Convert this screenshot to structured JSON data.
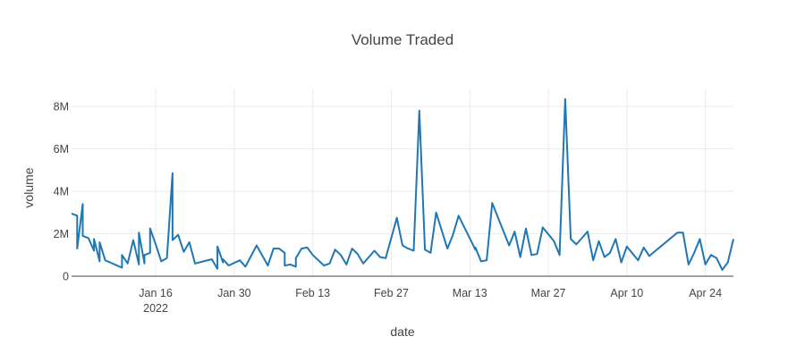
{
  "chart_data": {
    "type": "line",
    "title": "Volume Traded",
    "xlabel": "date",
    "ylabel": "volume",
    "x_range": [
      "2022-01-01",
      "2022-04-29"
    ],
    "ylim": [
      0,
      8800000
    ],
    "x_ticks": [
      {
        "date": "2022-01-16",
        "label": "Jan 16",
        "sublabel": "2022"
      },
      {
        "date": "2022-01-30",
        "label": "Jan 30"
      },
      {
        "date": "2022-02-13",
        "label": "Feb 13"
      },
      {
        "date": "2022-02-27",
        "label": "Feb 27"
      },
      {
        "date": "2022-03-13",
        "label": "Mar 13"
      },
      {
        "date": "2022-03-27",
        "label": "Mar 27"
      },
      {
        "date": "2022-04-10",
        "label": "Apr 10"
      },
      {
        "date": "2022-04-24",
        "label": "Apr 24"
      }
    ],
    "y_ticks": [
      {
        "value": 0,
        "label": "0"
      },
      {
        "value": 2000000,
        "label": "2M"
      },
      {
        "value": 4000000,
        "label": "4M"
      },
      {
        "value": 6000000,
        "label": "6M"
      },
      {
        "value": 8000000,
        "label": "8M"
      }
    ],
    "grid": true,
    "line_color": "#1f77b4",
    "series": [
      {
        "x": [
          "2022-01-01",
          "2022-01-02",
          "2022-01-02",
          "2022-01-03",
          "2022-01-03",
          "2022-01-04",
          "2022-01-05",
          "2022-01-05",
          "2022-01-06",
          "2022-01-06",
          "2022-01-07",
          "2022-01-10",
          "2022-01-10",
          "2022-01-11",
          "2022-01-12",
          "2022-01-13",
          "2022-01-13",
          "2022-01-14",
          "2022-01-14",
          "2022-01-15",
          "2022-01-15",
          "2022-01-16",
          "2022-01-17",
          "2022-01-18",
          "2022-01-19",
          "2022-01-19",
          "2022-01-20",
          "2022-01-21",
          "2022-01-22",
          "2022-01-23",
          "2022-01-26",
          "2022-01-27",
          "2022-01-27",
          "2022-01-28",
          "2022-01-28",
          "2022-01-29",
          "2022-01-31",
          "2022-02-01",
          "2022-02-03",
          "2022-02-05",
          "2022-02-06",
          "2022-02-07",
          "2022-02-08",
          "2022-02-08",
          "2022-02-09",
          "2022-02-10",
          "2022-02-10",
          "2022-02-11",
          "2022-02-12",
          "2022-02-13",
          "2022-02-15",
          "2022-02-16",
          "2022-02-17",
          "2022-02-18",
          "2022-02-19",
          "2022-02-20",
          "2022-02-21",
          "2022-02-22",
          "2022-02-24",
          "2022-02-25",
          "2022-02-26",
          "2022-02-28",
          "2022-03-01",
          "2022-03-02",
          "2022-03-03",
          "2022-03-04",
          "2022-03-05",
          "2022-03-06",
          "2022-03-07",
          "2022-03-09",
          "2022-03-10",
          "2022-03-11",
          "2022-03-14",
          "2022-03-14",
          "2022-03-15",
          "2022-03-16",
          "2022-03-17",
          "2022-03-20",
          "2022-03-21",
          "2022-03-22",
          "2022-03-23",
          "2022-03-24",
          "2022-03-25",
          "2022-03-26",
          "2022-03-28",
          "2022-03-29",
          "2022-03-30",
          "2022-03-31",
          "2022-04-01",
          "2022-04-03",
          "2022-04-04",
          "2022-04-05",
          "2022-04-06",
          "2022-04-07",
          "2022-04-08",
          "2022-04-09",
          "2022-04-10",
          "2022-04-12",
          "2022-04-13",
          "2022-04-14",
          "2022-04-19",
          "2022-04-20",
          "2022-04-21",
          "2022-04-22",
          "2022-04-23",
          "2022-04-24",
          "2022-04-25",
          "2022-04-26",
          "2022-04-27",
          "2022-04-28",
          "2022-04-29"
        ],
        "y": [
          2950000,
          2850000,
          1300000,
          3400000,
          1900000,
          1800000,
          1200000,
          1750000,
          700000,
          1600000,
          750000,
          400000,
          1000000,
          600000,
          1700000,
          550000,
          2050000,
          600000,
          1000000,
          1100000,
          2250000,
          1500000,
          700000,
          850000,
          4850000,
          1700000,
          1950000,
          1150000,
          1600000,
          600000,
          800000,
          350000,
          1400000,
          650000,
          800000,
          500000,
          750000,
          450000,
          1450000,
          500000,
          1300000,
          1300000,
          1100000,
          500000,
          550000,
          450000,
          850000,
          1300000,
          1350000,
          1000000,
          500000,
          600000,
          1250000,
          1000000,
          550000,
          1300000,
          1050000,
          600000,
          1200000,
          900000,
          850000,
          2750000,
          1450000,
          1300000,
          1200000,
          7800000,
          1250000,
          1100000,
          3000000,
          1300000,
          1950000,
          2850000,
          1250000,
          1350000,
          700000,
          750000,
          3450000,
          1450000,
          2100000,
          900000,
          2250000,
          1000000,
          1050000,
          2300000,
          1650000,
          1000000,
          8350000,
          1750000,
          1500000,
          2100000,
          750000,
          1650000,
          900000,
          1100000,
          1750000,
          650000,
          1400000,
          750000,
          1350000,
          950000,
          2050000,
          2050000,
          550000,
          1100000,
          1750000,
          550000,
          1000000,
          850000,
          300000,
          650000,
          1750000
        ]
      }
    ]
  }
}
